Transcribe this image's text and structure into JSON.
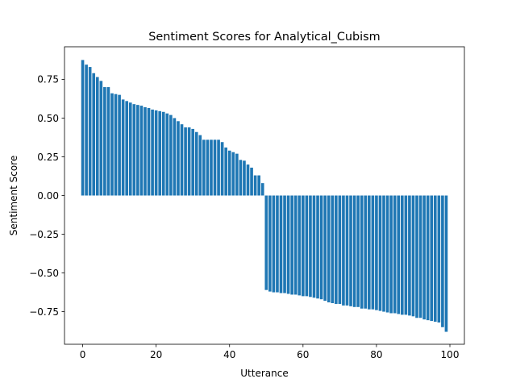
{
  "chart_data": {
    "type": "bar",
    "title": "Sentiment Scores for Analytical_Cubism",
    "xlabel": "Utterance",
    "ylabel": "Sentiment Score",
    "xlim": [
      -4.95,
      103.95
    ],
    "ylim": [
      -0.9605,
      0.9605
    ],
    "x_ticks": [
      0,
      20,
      40,
      60,
      80,
      100
    ],
    "y_ticks": [
      -0.75,
      -0.5,
      -0.25,
      0.0,
      0.25,
      0.5,
      0.75
    ],
    "x_tick_labels": [
      "0",
      "20",
      "40",
      "60",
      "80",
      "100"
    ],
    "y_tick_labels": [
      "−0.75",
      "−0.50",
      "−0.25",
      "0.00",
      "0.25",
      "0.50",
      "0.75"
    ],
    "bar_color": "#1f77b4",
    "grid": false,
    "x": [
      0,
      1,
      2,
      3,
      4,
      5,
      6,
      7,
      8,
      9,
      10,
      11,
      12,
      13,
      14,
      15,
      16,
      17,
      18,
      19,
      20,
      21,
      22,
      23,
      24,
      25,
      26,
      27,
      28,
      29,
      30,
      31,
      32,
      33,
      34,
      35,
      36,
      37,
      38,
      39,
      40,
      41,
      42,
      43,
      44,
      45,
      46,
      47,
      48,
      49,
      50,
      51,
      52,
      53,
      54,
      55,
      56,
      57,
      58,
      59,
      60,
      61,
      62,
      63,
      64,
      65,
      66,
      67,
      68,
      69,
      70,
      71,
      72,
      73,
      74,
      75,
      76,
      77,
      78,
      79,
      80,
      81,
      82,
      83,
      84,
      85,
      86,
      87,
      88,
      89,
      90,
      91,
      92,
      93,
      94,
      95,
      96,
      97,
      98,
      99
    ],
    "values": [
      0.875,
      0.845,
      0.83,
      0.79,
      0.765,
      0.74,
      0.7,
      0.7,
      0.66,
      0.655,
      0.65,
      0.62,
      0.61,
      0.6,
      0.59,
      0.585,
      0.58,
      0.57,
      0.565,
      0.555,
      0.55,
      0.545,
      0.54,
      0.53,
      0.52,
      0.5,
      0.48,
      0.46,
      0.44,
      0.44,
      0.43,
      0.41,
      0.39,
      0.36,
      0.36,
      0.36,
      0.36,
      0.36,
      0.345,
      0.31,
      0.29,
      0.28,
      0.27,
      0.23,
      0.225,
      0.2,
      0.18,
      0.13,
      0.13,
      0.08,
      -0.61,
      -0.62,
      -0.625,
      -0.625,
      -0.63,
      -0.63,
      -0.635,
      -0.64,
      -0.64,
      -0.645,
      -0.65,
      -0.65,
      -0.655,
      -0.66,
      -0.665,
      -0.67,
      -0.68,
      -0.69,
      -0.695,
      -0.7,
      -0.7,
      -0.71,
      -0.71,
      -0.715,
      -0.72,
      -0.72,
      -0.73,
      -0.73,
      -0.735,
      -0.735,
      -0.74,
      -0.745,
      -0.75,
      -0.755,
      -0.76,
      -0.76,
      -0.765,
      -0.77,
      -0.77,
      -0.775,
      -0.78,
      -0.79,
      -0.79,
      -0.8,
      -0.805,
      -0.81,
      -0.815,
      -0.82,
      -0.85,
      -0.88
    ]
  }
}
